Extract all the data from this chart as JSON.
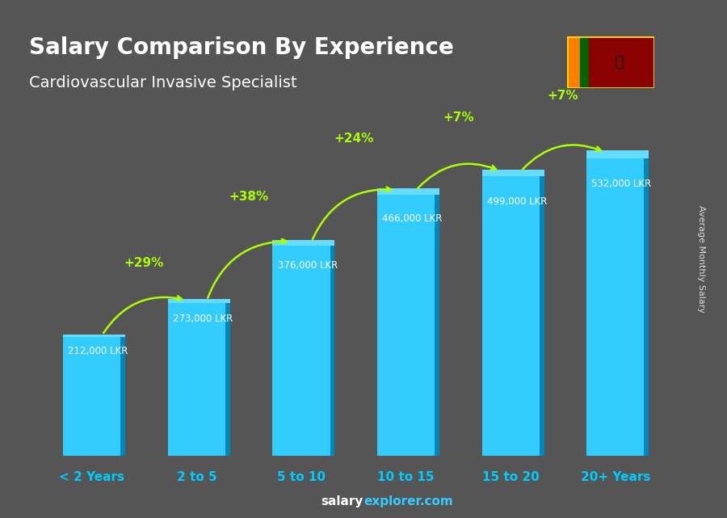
{
  "categories": [
    "< 2 Years",
    "2 to 5",
    "5 to 10",
    "10 to 15",
    "15 to 20",
    "20+ Years"
  ],
  "values": [
    212000,
    273000,
    376000,
    466000,
    499000,
    532000
  ],
  "value_labels": [
    "212,000 LKR",
    "273,000 LKR",
    "376,000 LKR",
    "466,000 LKR",
    "499,000 LKR",
    "532,000 LKR"
  ],
  "pct_changes": [
    "+29%",
    "+38%",
    "+24%",
    "+7%",
    "+7%"
  ],
  "title_line1": "Salary Comparison By Experience",
  "title_line2": "Cardiovascular Invasive Specialist",
  "ylabel": "Average Monthly Salary",
  "footer": "salaryexplorer.com",
  "bar_color_top": "#00ccff",
  "bar_color_mid": "#00aaee",
  "bar_color_bottom": "#0088cc",
  "bar_color_face": "#33bbff",
  "bar_color_side": "#0077bb",
  "pct_color": "#aaff00",
  "label_color": "#ffffff",
  "bg_color": "#555555",
  "title_color": "#ffffff",
  "cat_color": "#00ccff",
  "footer_color_salary": "#ffffff",
  "footer_color_explorer": "#00ccff",
  "ylim": [
    0,
    620000
  ]
}
